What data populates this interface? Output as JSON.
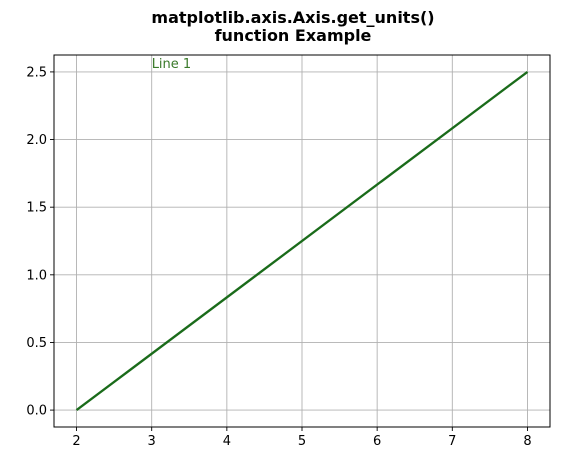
{
  "chart_data": {
    "type": "line",
    "title_lines": [
      "matplotlib.axis.Axis.get_units()",
      "function Example"
    ],
    "xlabel": "",
    "ylabel": "",
    "xlim": [
      1.7,
      8.3
    ],
    "ylim": [
      -0.125,
      2.625
    ],
    "xticks": [
      2,
      3,
      4,
      5,
      6,
      7,
      8
    ],
    "yticks": [
      0.0,
      0.5,
      1.0,
      1.5,
      2.0,
      2.5
    ],
    "xtick_labels": [
      "2",
      "3",
      "4",
      "5",
      "6",
      "7",
      "8"
    ],
    "ytick_labels": [
      "0.0",
      "0.5",
      "1.0",
      "1.5",
      "2.0",
      "2.5"
    ],
    "grid": true,
    "series": [
      {
        "color": "#1a6b1a",
        "x": [
          2,
          8
        ],
        "y": [
          0.0,
          2.5
        ]
      }
    ],
    "annotations": [
      {
        "text": "Line 1",
        "x": 3,
        "y": 2.5,
        "color": "#3a7a2a"
      }
    ]
  }
}
